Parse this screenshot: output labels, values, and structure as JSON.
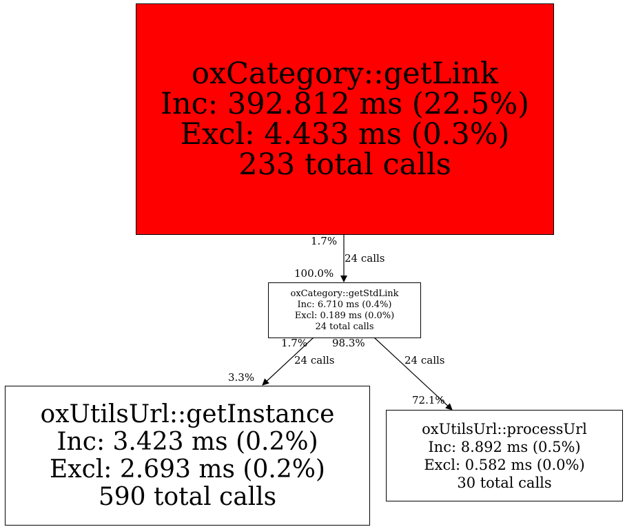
{
  "nodes": {
    "getLink": {
      "name": "oxCategory::getLink",
      "inc": "Inc: 392.812 ms (22.5%)",
      "excl": "Excl: 4.433 ms (0.3%)",
      "calls": "233 total calls",
      "fill": "#ff0000"
    },
    "getStdLink": {
      "name": "oxCategory::getStdLink",
      "inc": "Inc: 6.710 ms (0.4%)",
      "excl": "Excl: 0.189 ms (0.0%)",
      "calls": "24 total calls",
      "fill": "#ffffff"
    },
    "getInstance": {
      "name": "oxUtilsUrl::getInstance",
      "inc": "Inc: 3.423 ms (0.2%)",
      "excl": "Excl: 2.693 ms (0.2%)",
      "calls": "590 total calls",
      "fill": "#ffffff"
    },
    "processUrl": {
      "name": "oxUtilsUrl::processUrl",
      "inc": "Inc: 8.892 ms (0.5%)",
      "excl": "Excl: 0.582 ms (0.0%)",
      "calls": "30 total calls",
      "fill": "#ffffff"
    }
  },
  "edges": [
    {
      "from": "getLink",
      "to": "getStdLink",
      "tail": "1.7%",
      "label": "24 calls",
      "head": "100.0%"
    },
    {
      "from": "getStdLink",
      "to": "getInstance",
      "tail": "1.7%",
      "label": "24 calls",
      "head": "3.3%"
    },
    {
      "from": "getStdLink",
      "to": "processUrl",
      "tail": "98.3%",
      "label": "24 calls",
      "head": "72.1%"
    }
  ]
}
